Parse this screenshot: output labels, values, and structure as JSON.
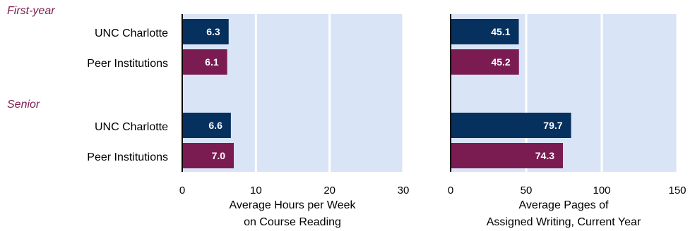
{
  "groups": [
    "First-year",
    "Senior"
  ],
  "categories": [
    "UNC Charlotte",
    "Peer Institutions"
  ],
  "colors": {
    "unc": "#06305e",
    "peer": "#7a1c52",
    "plot_bg": "#d9e5f6",
    "grid": "#ffffff"
  },
  "chart_data": [
    {
      "type": "bar",
      "orientation": "horizontal",
      "xlabel": [
        "Average Hours per Week",
        "on Course Reading"
      ],
      "xlim": [
        0,
        30
      ],
      "xticks": [
        0,
        10,
        20,
        30
      ],
      "series": [
        {
          "group": "First-year",
          "category": "UNC Charlotte",
          "value": 6.3,
          "label": "6.3"
        },
        {
          "group": "First-year",
          "category": "Peer Institutions",
          "value": 6.1,
          "label": "6.1"
        },
        {
          "group": "Senior",
          "category": "UNC Charlotte",
          "value": 6.6,
          "label": "6.6"
        },
        {
          "group": "Senior",
          "category": "Peer Institutions",
          "value": 7.0,
          "label": "7.0"
        }
      ]
    },
    {
      "type": "bar",
      "orientation": "horizontal",
      "xlabel": [
        "Average Pages of",
        "Assigned Writing, Current Year"
      ],
      "xlim": [
        0,
        150
      ],
      "xticks": [
        0,
        50,
        100,
        150
      ],
      "series": [
        {
          "group": "First-year",
          "category": "UNC Charlotte",
          "value": 45.1,
          "label": "45.1"
        },
        {
          "group": "First-year",
          "category": "Peer Institutions",
          "value": 45.2,
          "label": "45.2"
        },
        {
          "group": "Senior",
          "category": "UNC Charlotte",
          "value": 79.7,
          "label": "79.7"
        },
        {
          "group": "Senior",
          "category": "Peer Institutions",
          "value": 74.3,
          "label": "74.3"
        }
      ]
    }
  ]
}
